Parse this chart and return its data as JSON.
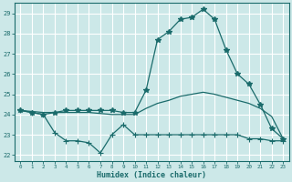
{
  "x": [
    0,
    1,
    2,
    3,
    4,
    5,
    6,
    7,
    8,
    9,
    10,
    11,
    12,
    13,
    14,
    15,
    16,
    17,
    18,
    19,
    20,
    21,
    22,
    23
  ],
  "line_max": [
    24.2,
    24.1,
    24.0,
    24.1,
    24.2,
    24.2,
    24.2,
    24.2,
    24.2,
    24.1,
    24.1,
    25.2,
    27.7,
    28.1,
    28.7,
    28.8,
    29.2,
    28.7,
    27.2,
    26.0,
    25.5,
    24.5,
    23.3,
    22.8
  ],
  "line_mean": [
    24.2,
    24.15,
    24.1,
    24.1,
    24.1,
    24.1,
    24.1,
    24.05,
    24.0,
    24.0,
    24.0,
    24.3,
    24.55,
    24.7,
    24.9,
    25.0,
    25.1,
    25.0,
    24.85,
    24.7,
    24.55,
    24.3,
    23.9,
    22.8
  ],
  "line_min": [
    24.2,
    24.1,
    24.0,
    23.1,
    22.7,
    22.7,
    22.6,
    22.1,
    23.0,
    23.5,
    23.0,
    23.0,
    23.0,
    23.0,
    23.0,
    23.0,
    23.0,
    23.0,
    23.0,
    23.0,
    22.8,
    22.8,
    22.7,
    22.7
  ],
  "bg_color": "#cce8e8",
  "grid_color": "#aacccc",
  "line_color": "#1a6b6b",
  "xlabel": "Humidex (Indice chaleur)",
  "ylim": [
    21.7,
    29.5
  ],
  "xlim": [
    -0.5,
    23.5
  ],
  "yticks": [
    22,
    23,
    24,
    25,
    26,
    27,
    28,
    29
  ],
  "xticks": [
    0,
    1,
    2,
    3,
    4,
    5,
    6,
    7,
    8,
    9,
    10,
    11,
    12,
    13,
    14,
    15,
    16,
    17,
    18,
    19,
    20,
    21,
    22,
    23
  ]
}
